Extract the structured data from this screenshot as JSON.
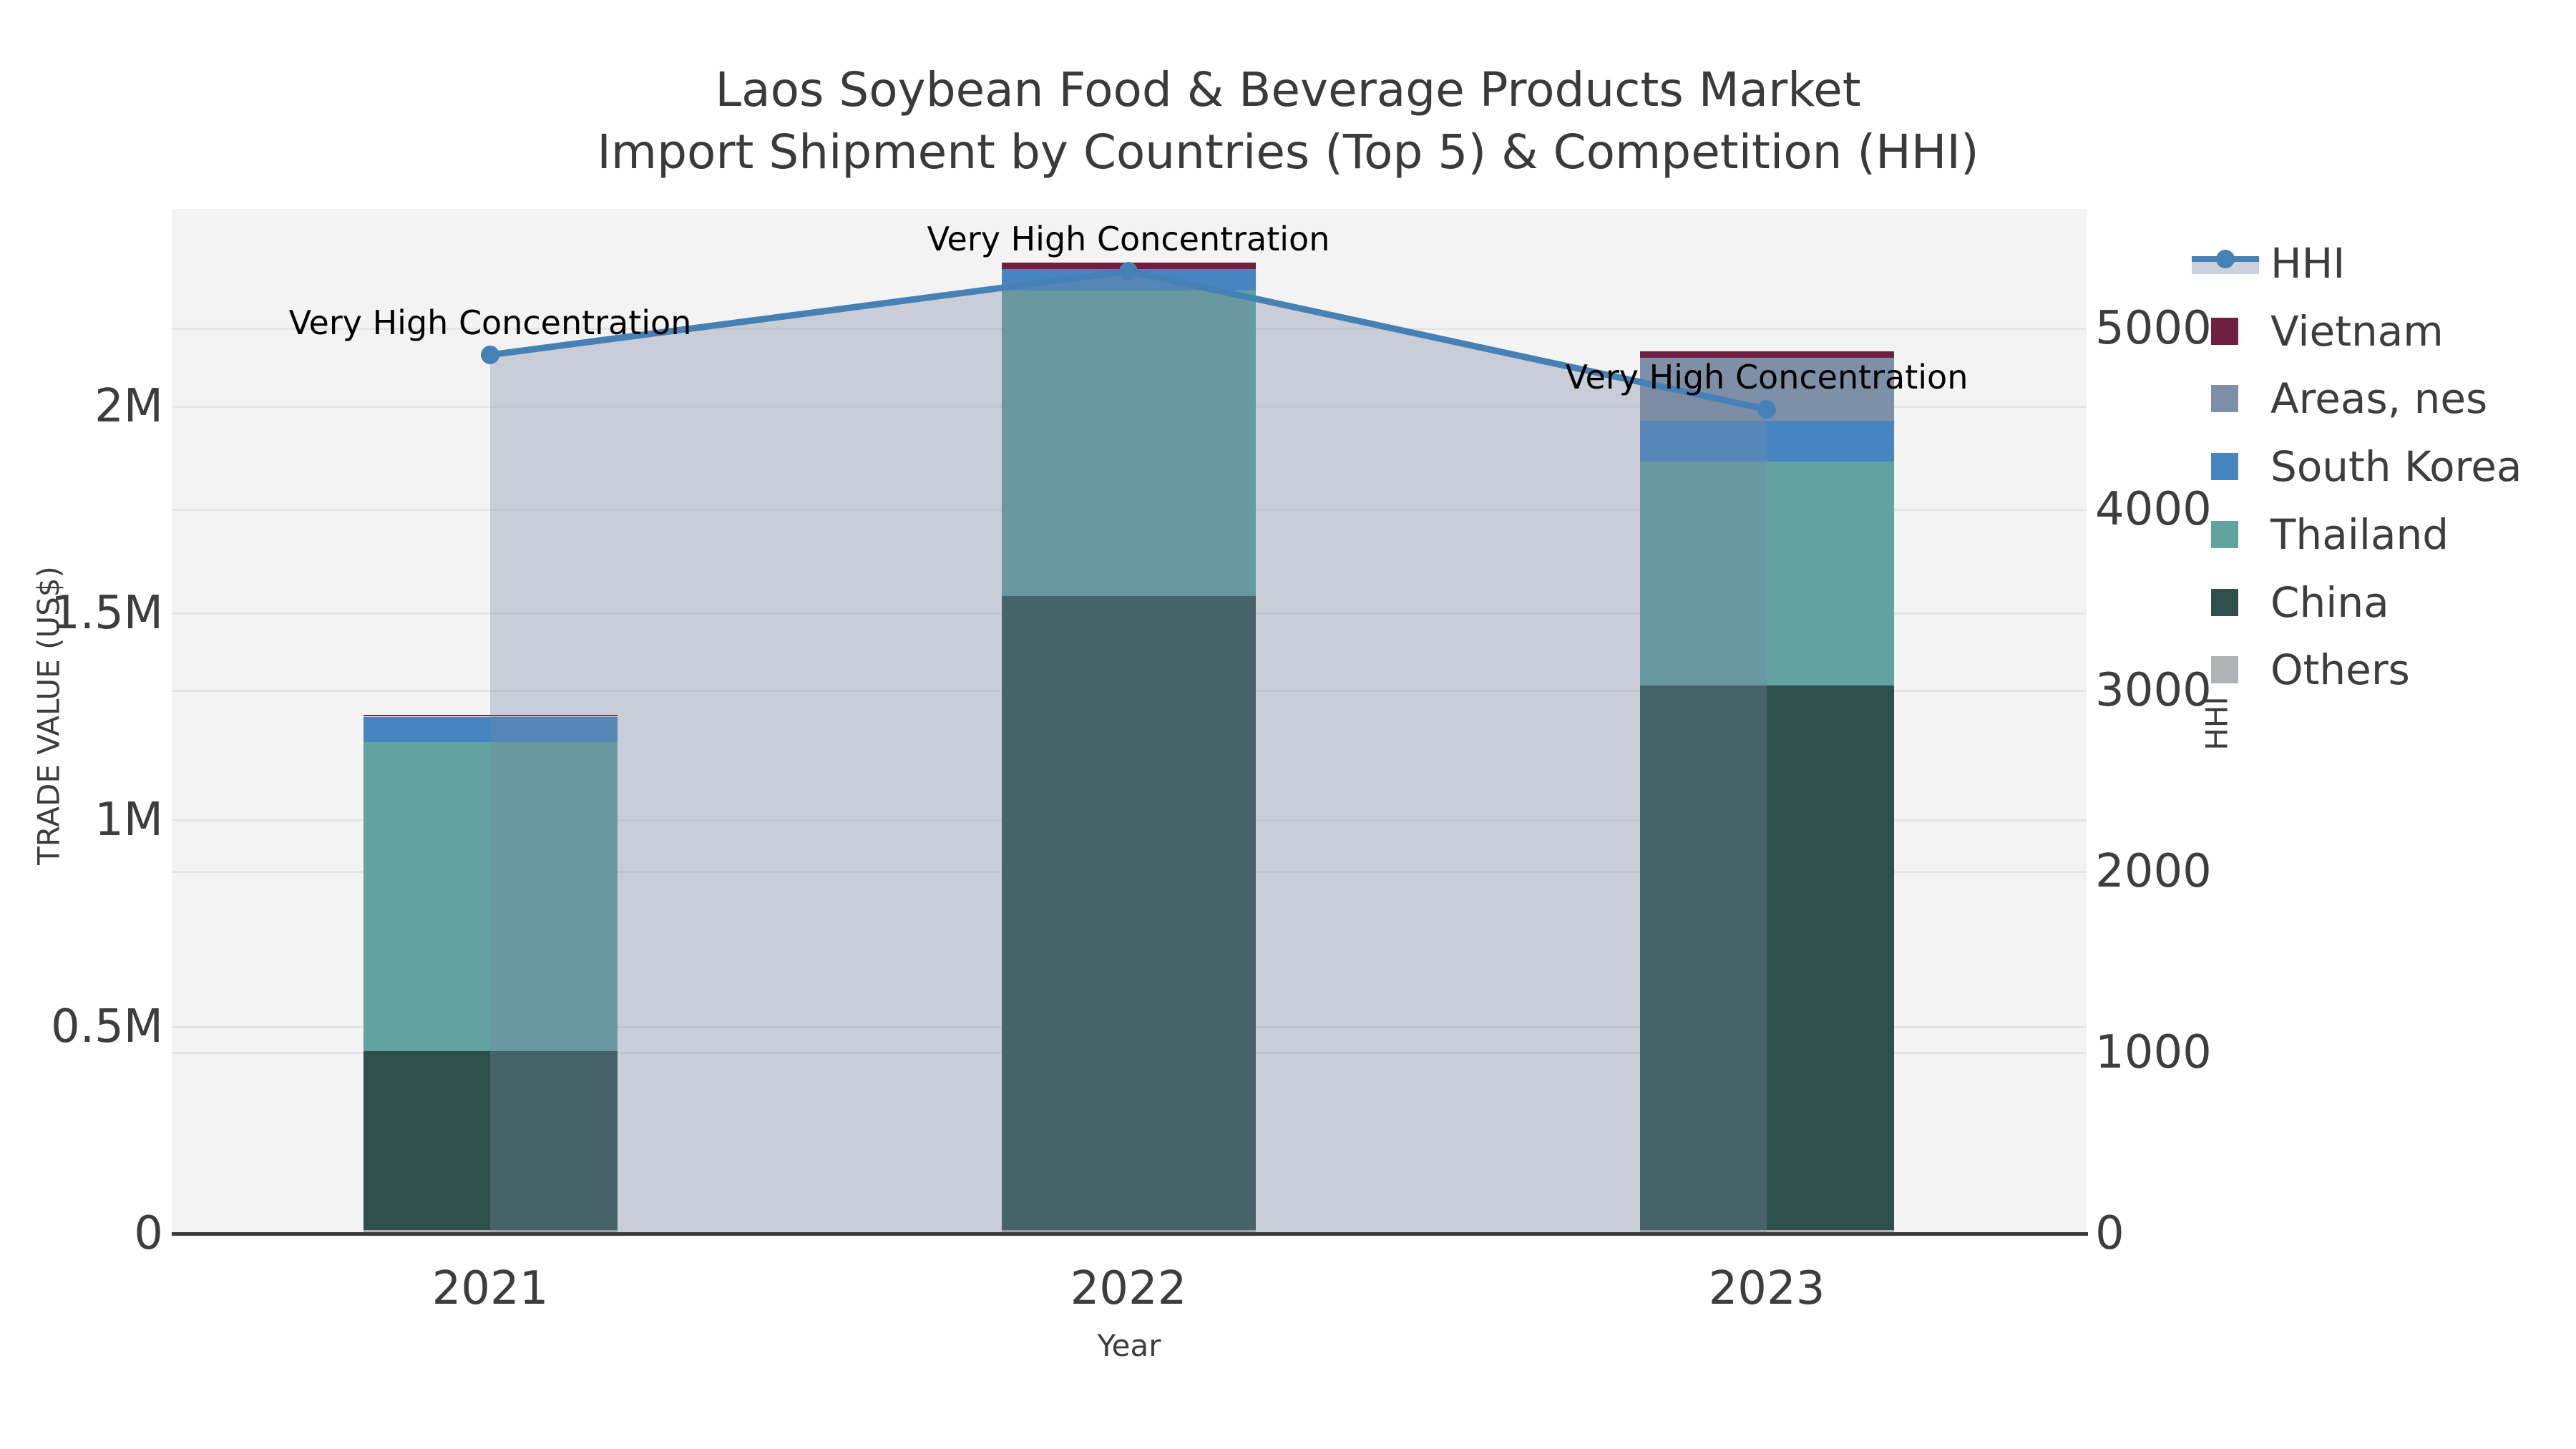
{
  "title": {
    "line1": "Laos Soybean Food & Beverage Products Market",
    "line2": "Import Shipment by Countries (Top 5) & Competition (HHI)"
  },
  "axes": {
    "x": {
      "label": "Year",
      "ticks": [
        "2021",
        "2022",
        "2023"
      ]
    },
    "y_left": {
      "label": "TRADE VALUE (US$)",
      "ticks": [
        {
          "value": 0,
          "label": "0"
        },
        {
          "value": 500000,
          "label": "0.5M"
        },
        {
          "value": 1000000,
          "label": "1M"
        },
        {
          "value": 1500000,
          "label": "1.5M"
        },
        {
          "value": 2000000,
          "label": "2M"
        }
      ]
    },
    "y_right": {
      "label": "HHI",
      "ticks": [
        {
          "value": 0,
          "label": "0"
        },
        {
          "value": 1000,
          "label": "1000"
        },
        {
          "value": 2000,
          "label": "2000"
        },
        {
          "value": 3000,
          "label": "3000"
        },
        {
          "value": 4000,
          "label": "4000"
        },
        {
          "value": 5000,
          "label": "5000"
        }
      ]
    }
  },
  "legend": {
    "items": [
      {
        "label": "HHI",
        "type": "line",
        "color": "#4681b5",
        "patch_color": "#ccd2dc"
      },
      {
        "label": "Vietnam",
        "type": "patch",
        "color": "#6d2040"
      },
      {
        "label": "Areas, nes",
        "type": "patch",
        "color": "#7e90a8"
      },
      {
        "label": "South Korea",
        "type": "patch",
        "color": "#4685c0"
      },
      {
        "label": "Thailand",
        "type": "patch",
        "color": "#60a3a0"
      },
      {
        "label": "China",
        "type": "patch",
        "color": "#2d504d"
      },
      {
        "label": "Others",
        "type": "patch",
        "color": "#b0b3b5"
      }
    ]
  },
  "chart_data": {
    "type": "bar",
    "subtype": "stacked-bar-with-line-area-overlay",
    "title": "Laos Soybean Food & Beverage Products Market — Import Shipment by Countries (Top 5) & Competition (HHI)",
    "categories": [
      2021,
      2022,
      2023
    ],
    "xlabel": "Year",
    "ylabel_left": "TRADE VALUE (US$)",
    "ylabel_right": "HHI",
    "ylim_left": [
      0,
      2475000
    ],
    "ylim_right": [
      0,
      5660
    ],
    "grid": "on",
    "legend_position": "outside-right",
    "stack_order_bottom_to_top": [
      "Others",
      "China",
      "Thailand",
      "South Korea",
      "Areas, nes",
      "Vietnam"
    ],
    "series": [
      {
        "name": "Others",
        "axis": "left",
        "color": "#b0b3b5",
        "values_usd": [
          8000,
          8000,
          8000
        ]
      },
      {
        "name": "China",
        "axis": "left",
        "color": "#2d504d",
        "values_usd": [
          434000,
          1534000,
          1317000
        ]
      },
      {
        "name": "Thailand",
        "axis": "left",
        "color": "#60a3a0",
        "values_usd": [
          746000,
          739000,
          541000
        ]
      },
      {
        "name": "South Korea",
        "axis": "left",
        "color": "#4685c0",
        "values_usd": [
          62000,
          52000,
          99000
        ]
      },
      {
        "name": "Areas, nes",
        "axis": "left",
        "color": "#7e90a8",
        "values_usd": [
          0,
          0,
          152000
        ]
      },
      {
        "name": "Vietnam",
        "axis": "left",
        "color": "#6d2040",
        "values_usd": [
          4000,
          14000,
          17000
        ]
      }
    ],
    "line": {
      "name": "HHI",
      "axis": "right",
      "values": [
        4854,
        5316,
        4553
      ],
      "color": "#4681b5",
      "marker": "circle",
      "area_fill": "rgba(120,135,160,0.35)"
    },
    "annotations": [
      {
        "x": 2021,
        "text": "Very High Concentration"
      },
      {
        "x": 2022,
        "text": "Very High Concentration"
      },
      {
        "x": 2023,
        "text": "Very High Concentration"
      }
    ]
  }
}
